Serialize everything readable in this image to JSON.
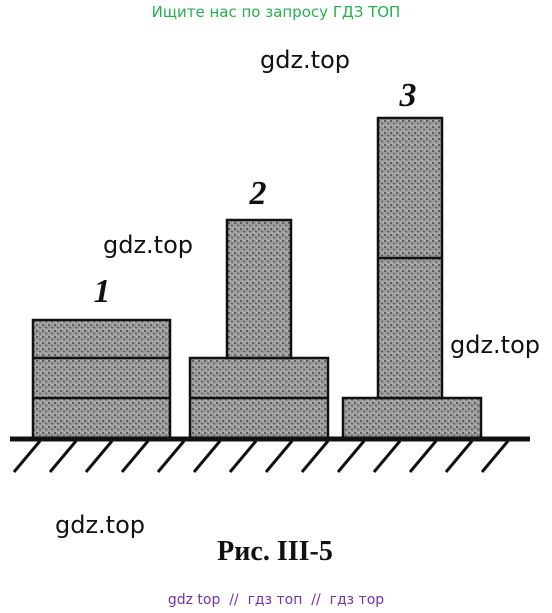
{
  "header": {
    "text": "Ищите нас по запросу ГДЗ ТОП"
  },
  "watermarks": [
    "gdz.top",
    "gdz.top",
    "gdz.top",
    "gdz.top"
  ],
  "figure": {
    "labels": [
      "1",
      "2",
      "3"
    ],
    "caption": "Рис. III-5"
  },
  "footer": {
    "text": "gdz top  //  гдз топ  //  гдз тор"
  }
}
